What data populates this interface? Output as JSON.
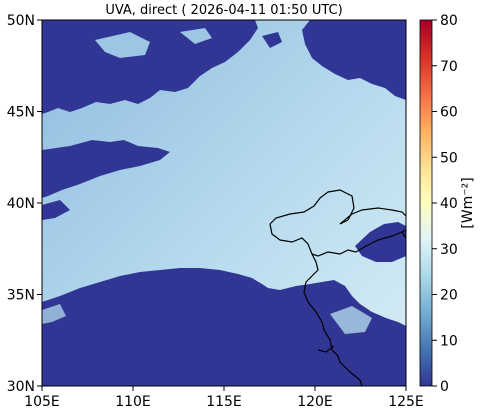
{
  "title": "UVA, direct ( 2026-04-11 01:50 UTC)",
  "map": {
    "lon_range": [
      105,
      125
    ],
    "lat_range": [
      30,
      50
    ],
    "x_ticks": [
      {
        "value": 105,
        "label": "105E"
      },
      {
        "value": 110,
        "label": "110E"
      },
      {
        "value": 115,
        "label": "115E"
      },
      {
        "value": 120,
        "label": "120E"
      },
      {
        "value": 125,
        "label": "125E"
      }
    ],
    "y_ticks": [
      {
        "value": 30,
        "label": "30N"
      },
      {
        "value": 35,
        "label": "35N"
      },
      {
        "value": 40,
        "label": "40N"
      },
      {
        "value": 45,
        "label": "45N"
      },
      {
        "value": 50,
        "label": "50N"
      }
    ]
  },
  "colorbar": {
    "range": [
      0,
      80
    ],
    "ticks": [
      {
        "value": 0,
        "label": "0"
      },
      {
        "value": 10,
        "label": "10"
      },
      {
        "value": 20,
        "label": "20"
      },
      {
        "value": 30,
        "label": "30"
      },
      {
        "value": 40,
        "label": "40"
      },
      {
        "value": 50,
        "label": "50"
      },
      {
        "value": 60,
        "label": "60"
      },
      {
        "value": 70,
        "label": "70"
      },
      {
        "value": 80,
        "label": "80"
      }
    ],
    "unit_label": "[Wm⁻²]",
    "colormap": [
      "#313695",
      "#4575b4",
      "#74add1",
      "#abd9e9",
      "#e0f3f8",
      "#ffffbf",
      "#fee090",
      "#fdae61",
      "#f46d43",
      "#d73027",
      "#a50026"
    ]
  },
  "colors": {
    "cloud": "#313695",
    "clear_sky_north": "#9cc6e3",
    "clear_sky_south": "#c9e8f2",
    "coastline": "#000000"
  }
}
